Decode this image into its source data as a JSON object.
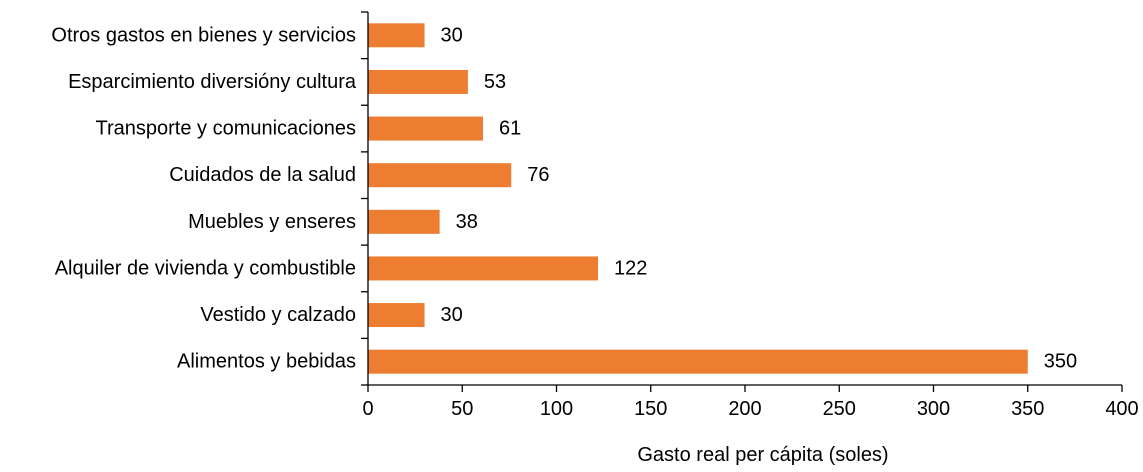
{
  "chart_data": {
    "type": "bar",
    "orientation": "horizontal",
    "categories": [
      "Otros gastos en bienes y servicios",
      "Esparcimiento diversióny cultura",
      "Transporte y comunicaciones",
      "Cuidados de la salud",
      "Muebles y enseres",
      "Alquiler de vivienda y combustible",
      "Vestido y calzado",
      "Alimentos y bebidas"
    ],
    "values": [
      30,
      53,
      61,
      76,
      38,
      122,
      30,
      350
    ],
    "data_labels": [
      "30",
      "53",
      "61",
      "76",
      "38",
      "122",
      "30",
      "350"
    ],
    "xlabel": "Gasto real per cápita (soles)",
    "ylabel": "",
    "xlim": [
      0,
      400
    ],
    "xticks": [
      0,
      50,
      100,
      150,
      200,
      250,
      300,
      350,
      400
    ],
    "xtick_labels": [
      "0",
      "50",
      "100",
      "150",
      "200",
      "250",
      "300",
      "350",
      "400"
    ],
    "bar_color": "#ED7D31",
    "grid": false,
    "legend": "none"
  }
}
